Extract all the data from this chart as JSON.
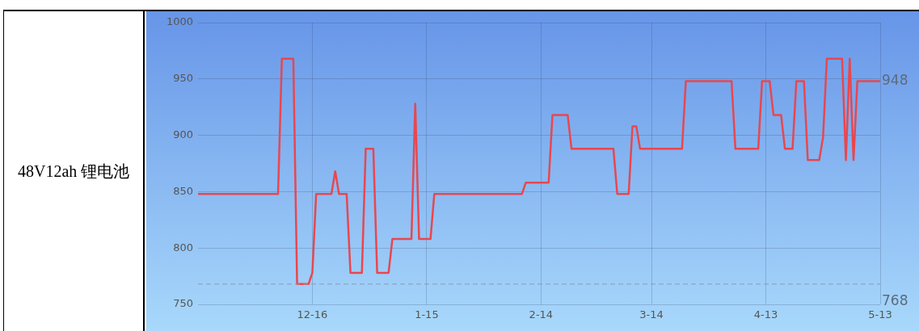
{
  "chart_data": {
    "type": "line",
    "title": "48V12ah 锂电池",
    "categories": [
      null,
      null,
      null,
      null,
      null,
      null,
      null,
      null,
      null,
      null,
      null,
      null,
      null,
      null,
      null,
      null,
      null,
      null,
      null,
      null,
      null,
      null,
      null,
      null,
      null,
      null,
      null,
      null,
      null,
      null,
      "12-16",
      null,
      null,
      null,
      null,
      null,
      null,
      null,
      null,
      null,
      null,
      null,
      null,
      null,
      null,
      null,
      null,
      null,
      null,
      null,
      null,
      null,
      null,
      null,
      null,
      null,
      null,
      null,
      null,
      null,
      "1-15",
      null,
      null,
      null,
      null,
      null,
      null,
      null,
      null,
      null,
      null,
      null,
      null,
      null,
      null,
      null,
      null,
      null,
      null,
      null,
      null,
      null,
      null,
      null,
      null,
      null,
      null,
      null,
      null,
      null,
      "2-14",
      null,
      null,
      null,
      null,
      null,
      null,
      null,
      null,
      null,
      null,
      null,
      null,
      null,
      null,
      null,
      null,
      null,
      null,
      null,
      null,
      null,
      null,
      null,
      null,
      null,
      null,
      null,
      null,
      "3-14",
      null,
      null,
      null,
      null,
      null,
      null,
      null,
      null,
      null,
      null,
      null,
      null,
      null,
      null,
      null,
      null,
      null,
      null,
      null,
      null,
      null,
      null,
      null,
      null,
      null,
      null,
      null,
      null,
      null,
      "4-13",
      null,
      null,
      null,
      null,
      null,
      null,
      null,
      null,
      null,
      null,
      null,
      null,
      null,
      null,
      null,
      null,
      null,
      null,
      null,
      null,
      null,
      null,
      null,
      null,
      null,
      null,
      null,
      null,
      null,
      "5-13"
    ],
    "series": [
      {
        "color": "#e8474f",
        "values": [
          848,
          848,
          848,
          848,
          848,
          848,
          848,
          848,
          848,
          848,
          848,
          848,
          848,
          848,
          848,
          848,
          848,
          848,
          848,
          848,
          848,
          848,
          968,
          968,
          968,
          968,
          768,
          768,
          768,
          768,
          778,
          848,
          848,
          848,
          848,
          848,
          868,
          848,
          848,
          848,
          778,
          778,
          778,
          778,
          888,
          888,
          888,
          778,
          778,
          778,
          778,
          808,
          808,
          808,
          808,
          808,
          808,
          928,
          808,
          808,
          808,
          808,
          848,
          848,
          848,
          848,
          848,
          848,
          848,
          848,
          848,
          848,
          848,
          848,
          848,
          848,
          848,
          848,
          848,
          848,
          848,
          848,
          848,
          848,
          848,
          848,
          858,
          858,
          858,
          858,
          858,
          858,
          858,
          918,
          918,
          918,
          918,
          918,
          888,
          888,
          888,
          888,
          888,
          888,
          888,
          888,
          888,
          888,
          888,
          888,
          848,
          848,
          848,
          848,
          908,
          908,
          888,
          888,
          888,
          888,
          888,
          888,
          888,
          888,
          888,
          888,
          888,
          888,
          948,
          948,
          948,
          948,
          948,
          948,
          948,
          948,
          948,
          948,
          948,
          948,
          948,
          888,
          888,
          888,
          888,
          888,
          888,
          888,
          948,
          948,
          948,
          918,
          918,
          918,
          888,
          888,
          888,
          948,
          948,
          948,
          878,
          878,
          878,
          878,
          898,
          968,
          968,
          968,
          968,
          968,
          878,
          968,
          878,
          948,
          948,
          948,
          948,
          948,
          948,
          948
        ]
      }
    ],
    "ylim": [
      750,
      1000
    ],
    "yticks": [
      750,
      800,
      850,
      900,
      950,
      1000
    ],
    "grid": true,
    "legend": false,
    "marker": "none",
    "line_style": "solid",
    "ref_lines": [
      {
        "axis": "y",
        "value": 768,
        "label": "768",
        "color": "#8a9bb0",
        "line_style": "dashed"
      }
    ],
    "annotations": [
      {
        "text": "948",
        "x": "5-13",
        "y": 948
      }
    ]
  }
}
